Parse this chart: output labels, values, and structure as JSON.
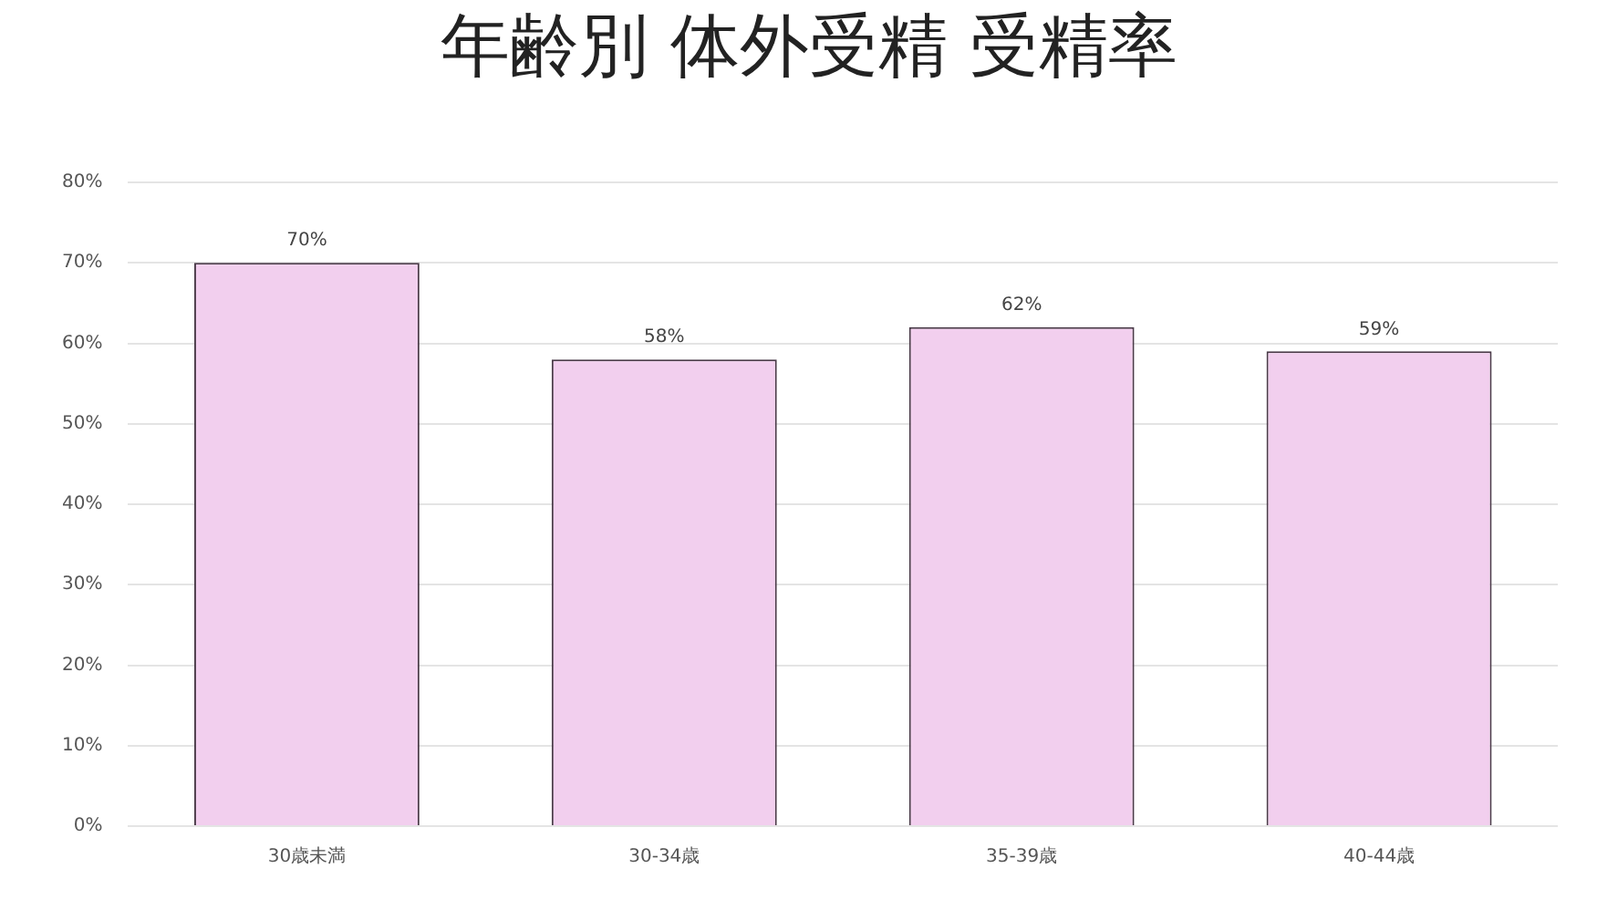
{
  "chart_data": {
    "type": "bar",
    "title": "年齢別 体外受精 受精率",
    "categories": [
      "30歳未満",
      "30-34歳",
      "35-39歳",
      "40-44歳"
    ],
    "values": [
      70,
      58,
      62,
      59
    ],
    "value_labels": [
      "70%",
      "58%",
      "62%",
      "59%"
    ],
    "color": "#f2cfee",
    "ylim": [
      0,
      80
    ],
    "yticks": [
      {
        "value": 0,
        "label": "0%"
      },
      {
        "value": 10,
        "label": "10%"
      },
      {
        "value": 20,
        "label": "20%"
      },
      {
        "value": 30,
        "label": "30%"
      },
      {
        "value": 40,
        "label": "40%"
      },
      {
        "value": 50,
        "label": "50%"
      },
      {
        "value": 60,
        "label": "60%"
      },
      {
        "value": 70,
        "label": "70%"
      },
      {
        "value": 80,
        "label": "80%"
      }
    ],
    "grid": "y",
    "legend": false
  }
}
